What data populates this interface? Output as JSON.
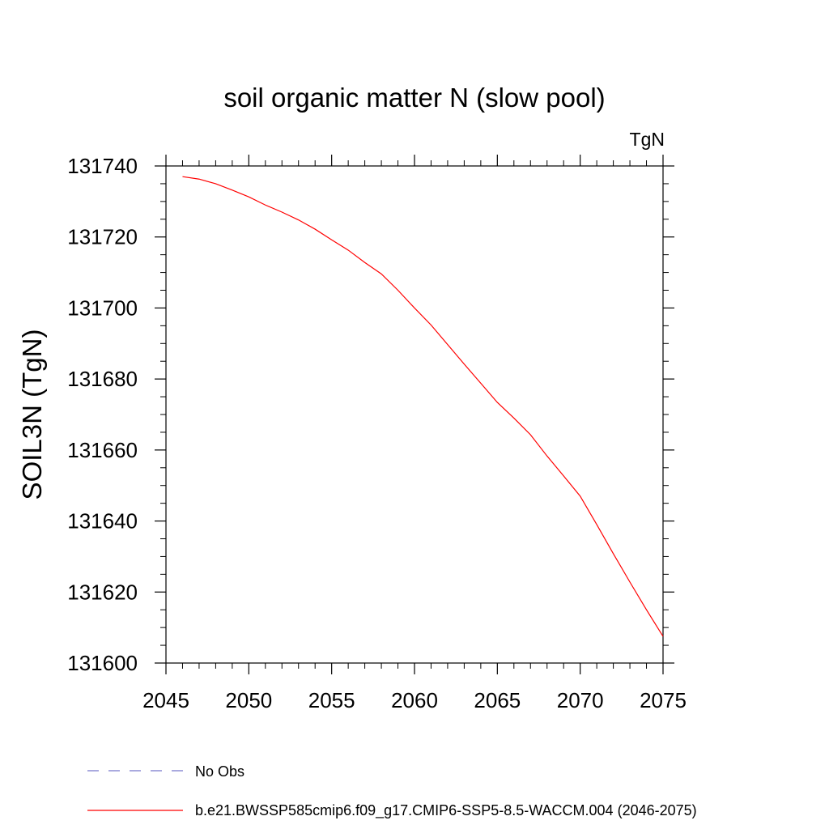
{
  "chart_data": {
    "type": "line",
    "title": "soil organic matter N (slow pool)",
    "units_label": "TgN",
    "xlabel": "",
    "ylabel": "SOIL3N  (TgN)",
    "xlim": [
      2045,
      2075
    ],
    "ylim": [
      131600,
      131740
    ],
    "x_ticks": [
      2045,
      2050,
      2055,
      2060,
      2065,
      2070,
      2075
    ],
    "x_tick_labels": [
      "2045",
      "2050",
      "2055",
      "2060",
      "2065",
      "2070",
      "2075"
    ],
    "y_ticks": [
      131600,
      131620,
      131640,
      131660,
      131680,
      131700,
      131720,
      131740
    ],
    "y_tick_labels": [
      "131600",
      "131620",
      "131640",
      "131660",
      "131680",
      "131700",
      "131720",
      "131740"
    ],
    "series": [
      {
        "name": "b.e21.BWSSP585cmip6.f09_g17.CMIP6-SSP5-8.5-WACCM.004 (2046-2075)",
        "color": "#ff0000",
        "style": "solid",
        "x": [
          2046,
          2047,
          2048,
          2049,
          2050,
          2051,
          2052,
          2053,
          2054,
          2055,
          2056,
          2057,
          2058,
          2059,
          2060,
          2061,
          2062,
          2063,
          2064,
          2065,
          2066,
          2067,
          2068,
          2069,
          2070,
          2071,
          2072,
          2073,
          2074,
          2075
        ],
        "values": [
          131737,
          131736.3,
          131735,
          131733.2,
          131731.3,
          131729,
          131727,
          131724.8,
          131722.2,
          131719.2,
          131716.3,
          131712.8,
          131709.6,
          131705,
          131700,
          131695.2,
          131689.7,
          131684.2,
          131678.8,
          131673.4,
          131669,
          131664.3,
          131658.3,
          131652.7,
          131647,
          131639,
          131630.8,
          131622.8,
          131615,
          131607.5
        ]
      }
    ],
    "legend": [
      {
        "label": "No Obs",
        "color": "#7777cc",
        "style": "dashed"
      },
      {
        "label": "b.e21.BWSSP585cmip6.f09_g17.CMIP6-SSP5-8.5-WACCM.004 (2046-2075)",
        "color": "#ff0000",
        "style": "solid"
      }
    ],
    "legend_position": "bottom",
    "grid": false
  }
}
